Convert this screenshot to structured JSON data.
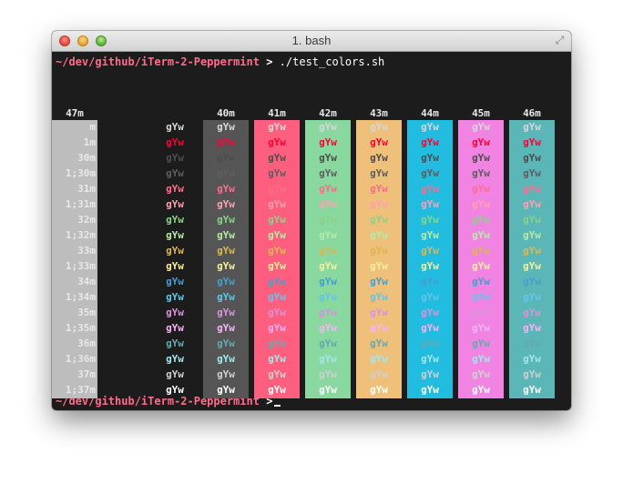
{
  "window": {
    "title": "1. bash",
    "buttons": {
      "close": "close",
      "minimize": "minimize",
      "zoom": "zoom"
    },
    "fullscreen_icon": "⤢"
  },
  "prompt1": {
    "path": "~/dev/github/iTerm-2-Peppermint",
    "symbol": ">",
    "command": "./test_colors.sh"
  },
  "prompt2": {
    "path": "~/dev/github/iTerm-2-Peppermint",
    "symbol": ">"
  },
  "sample_text": "gYw",
  "bg_headers": [
    "40m",
    "41m",
    "42m",
    "43m",
    "44m",
    "45m",
    "46m",
    "47m"
  ],
  "bg_colors": [
    "#555555",
    "#ff5f7e",
    "#89d8a0",
    "#efc07a",
    "#22bce0",
    "#f184e3",
    "#5bb6b8",
    "#bdbdbd"
  ],
  "rows": [
    {
      "label": "m",
      "fg": "#d6d6d6"
    },
    {
      "label": "1m",
      "fg": "#ff0033"
    },
    {
      "label": "30m",
      "fg": "#4d4d4d"
    },
    {
      "label": "1;30m",
      "fg": "#5e5e5e"
    },
    {
      "label": "31m",
      "fg": "#ff6b8b"
    },
    {
      "label": "1;31m",
      "fg": "#ff9fb0"
    },
    {
      "label": "32m",
      "fg": "#89d287"
    },
    {
      "label": "1;32m",
      "fg": "#b6eaa7"
    },
    {
      "label": "33m",
      "fg": "#dab752"
    },
    {
      "label": "1;33m",
      "fg": "#f7ee9a"
    },
    {
      "label": "34m",
      "fg": "#449fd0"
    },
    {
      "label": "1;34m",
      "fg": "#63c5ea"
    },
    {
      "label": "35m",
      "fg": "#da92d9"
    },
    {
      "label": "1;35m",
      "fg": "#fbb1f8"
    },
    {
      "label": "36m",
      "fg": "#65aaaf"
    },
    {
      "label": "1;36m",
      "fg": "#a3e6ea"
    },
    {
      "label": "37m",
      "fg": "#cfcfcf"
    },
    {
      "label": "1;37m",
      "fg": "#ffffff"
    }
  ]
}
